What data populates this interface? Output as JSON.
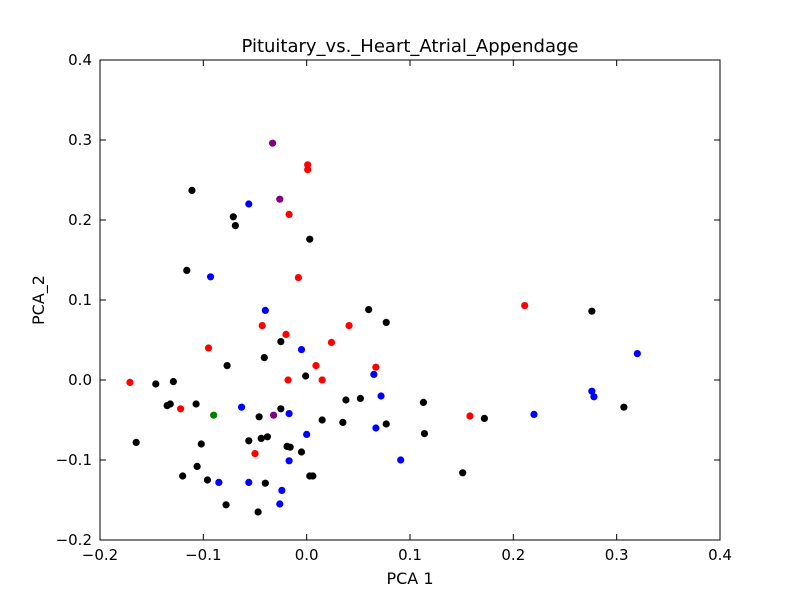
{
  "chart_data": {
    "type": "scatter",
    "title": "Pituitary_vs._Heart_Atrial_Appendage",
    "xlabel": "PCA 1",
    "ylabel": "PCA_2",
    "xlim": [
      -0.2,
      0.4
    ],
    "ylim": [
      -0.2,
      0.4
    ],
    "xticks": [
      -0.2,
      -0.1,
      0.0,
      0.1,
      0.2,
      0.3,
      0.4
    ],
    "yticks": [
      -0.2,
      -0.1,
      0.0,
      0.1,
      0.2,
      0.3,
      0.4
    ],
    "xtick_labels": [
      "−0.2",
      "−0.1",
      "0.0",
      "0.1",
      "0.2",
      "0.3",
      "0.4"
    ],
    "ytick_labels": [
      "−0.2",
      "−0.1",
      "0.0",
      "0.1",
      "0.2",
      "0.3",
      "0.4"
    ],
    "grid": false,
    "series": [
      {
        "color": "#000000",
        "points": [
          [
            -0.111,
            0.237
          ],
          [
            -0.071,
            0.204
          ],
          [
            -0.069,
            0.193
          ],
          [
            0.003,
            0.176
          ],
          [
            -0.116,
            0.137
          ],
          [
            0.06,
            0.088
          ],
          [
            0.077,
            0.072
          ],
          [
            0.276,
            0.086
          ],
          [
            -0.025,
            0.048
          ],
          [
            -0.041,
            0.028
          ],
          [
            -0.077,
            0.018
          ],
          [
            -0.001,
            0.005
          ],
          [
            -0.129,
            -0.002
          ],
          [
            -0.146,
            -0.005
          ],
          [
            -0.135,
            -0.032
          ],
          [
            -0.132,
            -0.03
          ],
          [
            -0.107,
            -0.03
          ],
          [
            0.038,
            -0.025
          ],
          [
            0.052,
            -0.023
          ],
          [
            0.113,
            -0.028
          ],
          [
            -0.046,
            -0.046
          ],
          [
            -0.025,
            -0.036
          ],
          [
            0.015,
            -0.05
          ],
          [
            0.035,
            -0.053
          ],
          [
            0.077,
            -0.055
          ],
          [
            0.172,
            -0.048
          ],
          [
            0.307,
            -0.034
          ],
          [
            -0.165,
            -0.078
          ],
          [
            -0.102,
            -0.08
          ],
          [
            -0.056,
            -0.076
          ],
          [
            -0.044,
            -0.073
          ],
          [
            -0.038,
            -0.071
          ],
          [
            -0.019,
            -0.083
          ],
          [
            -0.016,
            -0.084
          ],
          [
            -0.005,
            -0.09
          ],
          [
            0.114,
            -0.067
          ],
          [
            -0.106,
            -0.108
          ],
          [
            -0.12,
            -0.12
          ],
          [
            -0.096,
            -0.125
          ],
          [
            0.003,
            -0.12
          ],
          [
            0.006,
            -0.12
          ],
          [
            0.151,
            -0.116
          ],
          [
            -0.078,
            -0.156
          ],
          [
            -0.047,
            -0.165
          ],
          [
            -0.04,
            -0.129
          ]
        ]
      },
      {
        "color": "#0000ff",
        "points": [
          [
            -0.056,
            0.22
          ],
          [
            -0.093,
            0.129
          ],
          [
            -0.04,
            0.087
          ],
          [
            -0.005,
            0.038
          ],
          [
            0.065,
            0.007
          ],
          [
            0.32,
            0.033
          ],
          [
            0.072,
            -0.02
          ],
          [
            0.276,
            -0.014
          ],
          [
            0.278,
            -0.021
          ],
          [
            -0.063,
            -0.034
          ],
          [
            -0.017,
            -0.042
          ],
          [
            0.22,
            -0.043
          ],
          [
            0.0,
            -0.068
          ],
          [
            0.067,
            -0.06
          ],
          [
            -0.017,
            -0.101
          ],
          [
            0.091,
            -0.1
          ],
          [
            -0.085,
            -0.128
          ],
          [
            -0.056,
            -0.128
          ],
          [
            -0.024,
            -0.138
          ],
          [
            -0.026,
            -0.155
          ]
        ]
      },
      {
        "color": "#ff0000",
        "points": [
          [
            0.001,
            0.269
          ],
          [
            0.001,
            0.263
          ],
          [
            -0.017,
            0.207
          ],
          [
            -0.008,
            0.128
          ],
          [
            0.211,
            0.093
          ],
          [
            -0.043,
            0.068
          ],
          [
            0.041,
            0.068
          ],
          [
            -0.02,
            0.057
          ],
          [
            0.024,
            0.047
          ],
          [
            -0.095,
            0.04
          ],
          [
            0.009,
            0.018
          ],
          [
            0.067,
            0.016
          ],
          [
            -0.171,
            -0.003
          ],
          [
            -0.018,
            0.0
          ],
          [
            0.015,
            0.0
          ],
          [
            -0.122,
            -0.036
          ],
          [
            0.158,
            -0.045
          ],
          [
            -0.05,
            -0.092
          ]
        ]
      },
      {
        "color": "#800080",
        "points": [
          [
            -0.033,
            0.296
          ],
          [
            -0.026,
            0.226
          ],
          [
            -0.032,
            -0.044
          ]
        ]
      },
      {
        "color": "#008000",
        "points": [
          [
            -0.09,
            -0.044
          ]
        ]
      }
    ]
  }
}
